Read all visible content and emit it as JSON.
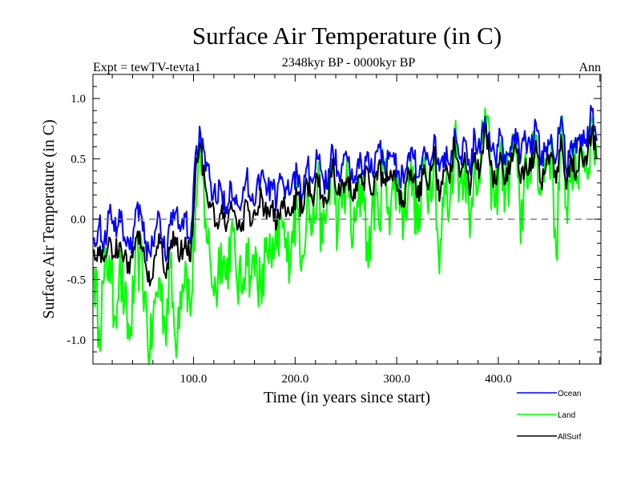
{
  "chart_data": {
    "type": "line",
    "title": "Surface Air Temperature (in C)",
    "subtitle": "2348kyr BP - 0000kyr BP",
    "left_label": "Expt = tewTV-tevta1",
    "right_label": "Ann",
    "xlabel": "Time (in years since start)",
    "ylabel": "Surface Air Temperature (in C)",
    "xlim": [
      1,
      501
    ],
    "ylim": [
      -1.2,
      1.2
    ],
    "x_ticks": [
      100,
      200,
      300,
      400
    ],
    "x_tick_labels": [
      "100.0",
      "200.0",
      "300.0",
      "400.0"
    ],
    "x_minor_step": 20,
    "y_ticks": [
      -1.0,
      -0.5,
      0.0,
      0.5,
      1.0
    ],
    "y_tick_labels": [
      "-1.0",
      "-0.5",
      "0.0",
      "0.5",
      "1.0"
    ],
    "y_minor_step": 0.1,
    "reference_line": {
      "y": 0.0,
      "style": "dashed",
      "color": "#808080"
    },
    "legend_position": "bottom-right",
    "x_step": 5,
    "x_start": 2,
    "series": [
      {
        "name": "Ocean",
        "color": "#0000ff",
        "values": [
          -0.15,
          -0.05,
          -0.2,
          0.05,
          -0.1,
          0.08,
          -0.15,
          -0.25,
          -0.05,
          0.12,
          -0.2,
          -0.28,
          -0.1,
          0.0,
          -0.3,
          -0.05,
          0.05,
          -0.1,
          0.02,
          -0.2,
          0.55,
          0.7,
          0.4,
          0.3,
          0.15,
          0.25,
          0.1,
          0.3,
          0.2,
          0.12,
          0.35,
          0.15,
          0.25,
          0.4,
          0.2,
          0.3,
          0.15,
          0.35,
          0.25,
          0.3,
          0.38,
          0.2,
          0.45,
          0.3,
          0.5,
          0.35,
          0.25,
          0.6,
          0.4,
          0.45,
          0.48,
          0.3,
          0.5,
          0.4,
          0.55,
          0.35,
          0.62,
          0.45,
          0.5,
          0.55,
          0.4,
          0.3,
          0.55,
          0.5,
          0.35,
          0.6,
          0.45,
          0.7,
          0.4,
          0.55,
          0.45,
          0.75,
          0.5,
          0.65,
          0.4,
          0.7,
          0.55,
          0.85,
          0.6,
          0.5,
          0.7,
          0.45,
          0.6,
          0.75,
          0.5,
          0.65,
          0.55,
          0.8,
          0.45,
          0.6,
          0.7,
          0.5,
          0.85,
          0.4,
          0.65,
          0.55,
          0.7,
          0.6,
          0.9,
          0.65
        ],
        "values_note": "approximate, sampled every 5 years"
      },
      {
        "name": "Land",
        "color": "#00ff00",
        "values": [
          -0.4,
          -0.9,
          -0.5,
          -0.3,
          -0.8,
          -0.4,
          -0.7,
          -1.0,
          -0.5,
          -0.3,
          -0.6,
          -1.15,
          -0.7,
          -0.5,
          -0.9,
          -0.4,
          -1.0,
          -0.6,
          -0.35,
          -0.8,
          0.1,
          0.45,
          0.0,
          -0.4,
          -0.6,
          -0.2,
          -0.5,
          -0.1,
          -0.45,
          -0.6,
          -0.2,
          -0.5,
          -0.3,
          -0.7,
          -0.15,
          -0.4,
          -0.25,
          0.0,
          -0.35,
          -0.1,
          0.1,
          -0.3,
          0.2,
          -0.1,
          0.3,
          -0.2,
          0.15,
          0.45,
          -0.1,
          0.2,
          0.3,
          -0.2,
          0.1,
          0.35,
          -0.4,
          0.2,
          0.0,
          0.45,
          0.1,
          0.25,
          0.3,
          0.0,
          0.4,
          0.2,
          -0.1,
          0.5,
          0.25,
          0.6,
          -0.45,
          0.3,
          0.1,
          0.7,
          0.3,
          0.5,
          -0.15,
          0.55,
          0.3,
          0.92,
          0.4,
          0.1,
          0.6,
          0.2,
          0.45,
          0.65,
          -0.2,
          0.55,
          0.3,
          0.7,
          0.2,
          0.5,
          0.6,
          -0.3,
          0.75,
          0.1,
          0.5,
          0.3,
          0.65,
          0.4,
          0.8,
          0.5
        ],
        "values_note": "approximate, sampled every 5 years"
      },
      {
        "name": "AllSurf",
        "color": "#000000",
        "values": [
          -0.25,
          -0.3,
          -0.35,
          -0.15,
          -0.3,
          -0.2,
          -0.3,
          -0.45,
          -0.25,
          -0.1,
          -0.35,
          -0.55,
          -0.3,
          -0.2,
          -0.45,
          -0.25,
          -0.15,
          -0.3,
          -0.15,
          -0.35,
          0.4,
          0.6,
          0.25,
          0.1,
          -0.05,
          0.05,
          -0.1,
          0.15,
          0.0,
          -0.1,
          0.15,
          -0.05,
          0.05,
          0.2,
          0.0,
          0.1,
          -0.05,
          0.15,
          0.05,
          0.1,
          0.2,
          0.05,
          0.3,
          0.15,
          0.35,
          0.2,
          0.15,
          0.5,
          0.2,
          0.3,
          0.35,
          0.15,
          0.35,
          0.3,
          0.4,
          0.2,
          0.45,
          0.3,
          0.35,
          0.4,
          0.25,
          0.1,
          0.4,
          0.35,
          0.15,
          0.45,
          0.3,
          0.6,
          0.15,
          0.4,
          0.3,
          0.65,
          0.35,
          0.55,
          0.2,
          0.55,
          0.4,
          0.75,
          0.45,
          0.3,
          0.55,
          0.3,
          0.45,
          0.6,
          0.3,
          0.5,
          0.4,
          0.65,
          0.3,
          0.45,
          0.55,
          0.3,
          0.7,
          0.25,
          0.5,
          0.4,
          0.55,
          0.45,
          0.75,
          0.5
        ],
        "values_note": "approximate, sampled every 5 years"
      }
    ]
  }
}
